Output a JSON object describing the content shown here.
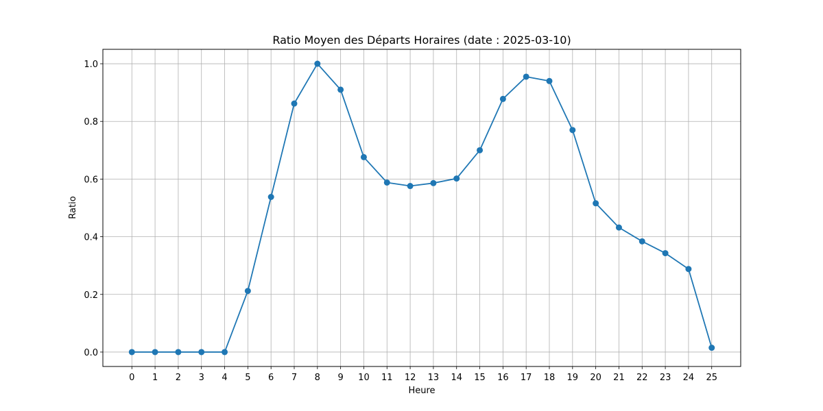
{
  "chart_data": {
    "type": "line",
    "title": "Ratio Moyen des Départs Horaires (date : 2025-03-10)",
    "xlabel": "Heure",
    "ylabel": "Ratio",
    "x": [
      0,
      1,
      2,
      3,
      4,
      5,
      6,
      7,
      8,
      9,
      10,
      11,
      12,
      13,
      14,
      15,
      16,
      17,
      18,
      19,
      20,
      21,
      22,
      23,
      24,
      25
    ],
    "series": [
      {
        "values": [
          0.0,
          0.0,
          0.0,
          0.0,
          0.0,
          0.212,
          0.538,
          0.862,
          1.0,
          0.91,
          0.676,
          0.588,
          0.576,
          0.586,
          0.602,
          0.7,
          0.878,
          0.955,
          0.94,
          0.77,
          0.516,
          0.432,
          0.384,
          0.343,
          0.288,
          0.015
        ],
        "color": "#1f77b4",
        "marker": "circle"
      }
    ],
    "xlim": [
      -1.25,
      26.25
    ],
    "ylim": [
      -0.05,
      1.05
    ],
    "xticks": [
      "0",
      "1",
      "2",
      "3",
      "4",
      "5",
      "6",
      "7",
      "8",
      "9",
      "10",
      "11",
      "12",
      "13",
      "14",
      "15",
      "16",
      "17",
      "18",
      "19",
      "20",
      "21",
      "22",
      "23",
      "24",
      "25"
    ],
    "yticks": [
      "0.0",
      "0.2",
      "0.4",
      "0.6",
      "0.8",
      "1.0"
    ],
    "grid": true,
    "grid_color": "#b0b0b0"
  }
}
